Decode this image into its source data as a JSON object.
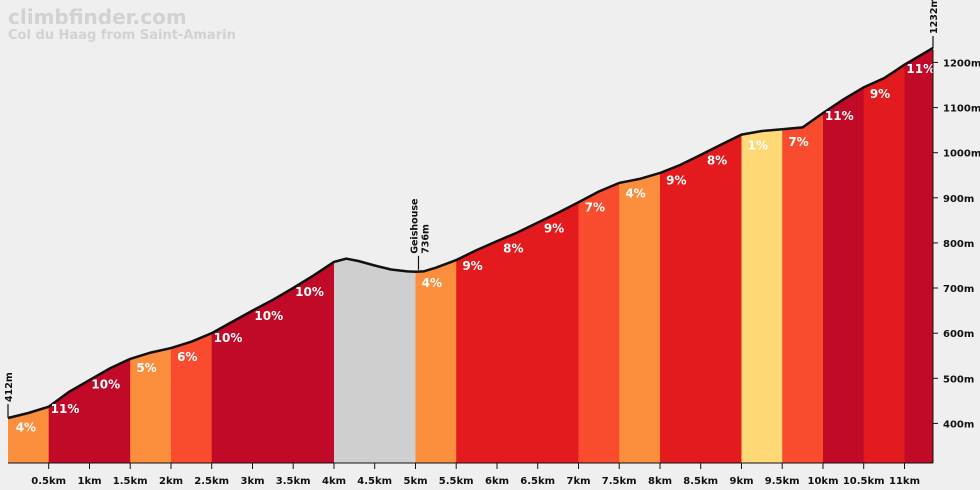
{
  "header": {
    "brand": "climbfinder.com",
    "subtitle": "Col du Haag from Saint-Amarin"
  },
  "chart_data": {
    "type": "area",
    "title": "Col du Haag from Saint-Amarin",
    "xlim": [
      0,
      11.35
    ],
    "ylim": [
      330,
      1235
    ],
    "x_ticks": [
      "0.5km",
      "1km",
      "1.5km",
      "2km",
      "2.5km",
      "3km",
      "3.5km",
      "4km",
      "4.5km",
      "5km",
      "5.5km",
      "6km",
      "6.5km",
      "7km",
      "7.5km",
      "8km",
      "8.5km",
      "9km",
      "9.5km",
      "10km",
      "10.5km",
      "11km"
    ],
    "y_ticks": [
      "400m",
      "500m",
      "600m",
      "700m",
      "800m",
      "900m",
      "1000m",
      "1100m",
      "1200m"
    ],
    "start_label": "412m",
    "end_label": "1232m",
    "annotation": {
      "name": "Geishouse",
      "elevation": "736m",
      "x": 5.0,
      "y": 736
    },
    "profile": [
      [
        0,
        412
      ],
      [
        0.25,
        423
      ],
      [
        0.5,
        437
      ],
      [
        0.75,
        470
      ],
      [
        1.0,
        496
      ],
      [
        1.25,
        522
      ],
      [
        1.5,
        543
      ],
      [
        1.75,
        557
      ],
      [
        2.0,
        567
      ],
      [
        2.25,
        581
      ],
      [
        2.5,
        600
      ],
      [
        2.75,
        625
      ],
      [
        3.0,
        650
      ],
      [
        3.25,
        674
      ],
      [
        3.5,
        700
      ],
      [
        3.75,
        728
      ],
      [
        4.0,
        758
      ],
      [
        4.15,
        765
      ],
      [
        4.3,
        760
      ],
      [
        4.5,
        750
      ],
      [
        4.7,
        741
      ],
      [
        4.9,
        737
      ],
      [
        5.0,
        736
      ],
      [
        5.1,
        737
      ],
      [
        5.25,
        745
      ],
      [
        5.5,
        762
      ],
      [
        5.75,
        784
      ],
      [
        6.0,
        804
      ],
      [
        6.25,
        823
      ],
      [
        6.5,
        845
      ],
      [
        6.75,
        867
      ],
      [
        7.0,
        890
      ],
      [
        7.25,
        914
      ],
      [
        7.5,
        933
      ],
      [
        7.75,
        942
      ],
      [
        8.0,
        955
      ],
      [
        8.25,
        973
      ],
      [
        8.5,
        995
      ],
      [
        8.75,
        1018
      ],
      [
        9.0,
        1040
      ],
      [
        9.25,
        1048
      ],
      [
        9.5,
        1052
      ],
      [
        9.75,
        1056
      ],
      [
        10.0,
        1088
      ],
      [
        10.25,
        1118
      ],
      [
        10.5,
        1145
      ],
      [
        10.75,
        1165
      ],
      [
        11.0,
        1195
      ],
      [
        11.35,
        1232
      ]
    ],
    "segments": [
      {
        "start": 0,
        "end": 0.5,
        "grade": "4%",
        "color": "#fa8e3c"
      },
      {
        "start": 0.5,
        "end": 1.5,
        "grade": "11%",
        "color": "#c10a27"
      },
      {
        "start": 1.0,
        "end": 1.5,
        "grade": "10%",
        "color": "#c10a27"
      },
      {
        "start": 1.5,
        "end": 2.0,
        "grade": "5%",
        "color": "#fa8e3c"
      },
      {
        "start": 2.0,
        "end": 2.5,
        "grade": "6%",
        "color": "#f94c2e"
      },
      {
        "start": 2.5,
        "end": 4.0,
        "grade": "10%",
        "color": "#c10a27"
      },
      {
        "start": 3.0,
        "end": 3.5,
        "grade": "10%",
        "color": "#c10a27"
      },
      {
        "start": 3.5,
        "end": 4.0,
        "grade": "10%",
        "color": "#c10a27"
      },
      {
        "start": 4.0,
        "end": 5.0,
        "grade": "",
        "color": "#cfcfcf"
      },
      {
        "start": 5.0,
        "end": 5.5,
        "grade": "4%",
        "color": "#fa8e3c"
      },
      {
        "start": 5.5,
        "end": 7.0,
        "grade": "9%",
        "color": "#e31b1f"
      },
      {
        "start": 6.0,
        "end": 6.5,
        "grade": "8%",
        "color": "#e31b1f"
      },
      {
        "start": 6.5,
        "end": 7.0,
        "grade": "9%",
        "color": "#e31b1f"
      },
      {
        "start": 7.0,
        "end": 7.5,
        "grade": "7%",
        "color": "#f94c2e"
      },
      {
        "start": 7.5,
        "end": 8.0,
        "grade": "4%",
        "color": "#fa8e3c"
      },
      {
        "start": 8.0,
        "end": 8.5,
        "grade": "9%",
        "color": "#e31b1f"
      },
      {
        "start": 8.5,
        "end": 9.0,
        "grade": "8%",
        "color": "#e31b1f"
      },
      {
        "start": 9.0,
        "end": 9.5,
        "grade": "1%",
        "color": "#fed976"
      },
      {
        "start": 9.5,
        "end": 10.0,
        "grade": "7%",
        "color": "#f94c2e"
      },
      {
        "start": 10.0,
        "end": 10.5,
        "grade": "11%",
        "color": "#c10a27"
      },
      {
        "start": 10.5,
        "end": 11.0,
        "grade": "9%",
        "color": "#e31b1f"
      },
      {
        "start": 11.0,
        "end": 11.35,
        "grade": "11%",
        "color": "#c10a27"
      }
    ]
  }
}
